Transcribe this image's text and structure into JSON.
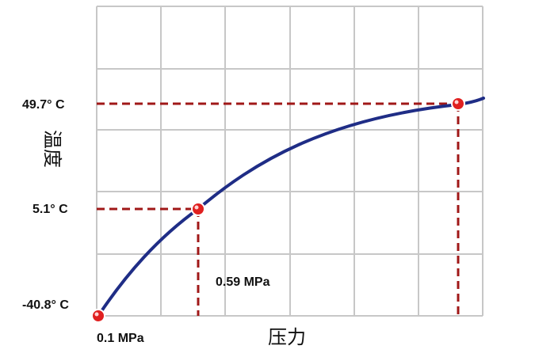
{
  "chart_data": {
    "type": "line",
    "title": "",
    "xlabel": "压力",
    "ylabel": "温度",
    "grid": true,
    "colors": {
      "curve": "#1f2d86",
      "guide": "#a01818",
      "point": "#e02020",
      "grid": "#c7c7c7"
    },
    "series": [
      {
        "points": [
          {
            "label": "0.1 MPa",
            "temp_label": "-40.8° C",
            "value": -40.8
          },
          {
            "label": "0.59 MPa",
            "temp_label": "5.1° C",
            "value": 5.1
          },
          {
            "label": "",
            "temp_label": "49.7° C",
            "value": 49.7
          }
        ]
      }
    ],
    "y_tick_labels": [
      "49.7° C",
      "5.1° C",
      "-40.8° C"
    ],
    "x_tick_labels": [
      "0.1 MPa",
      "0.59 MPa"
    ]
  }
}
